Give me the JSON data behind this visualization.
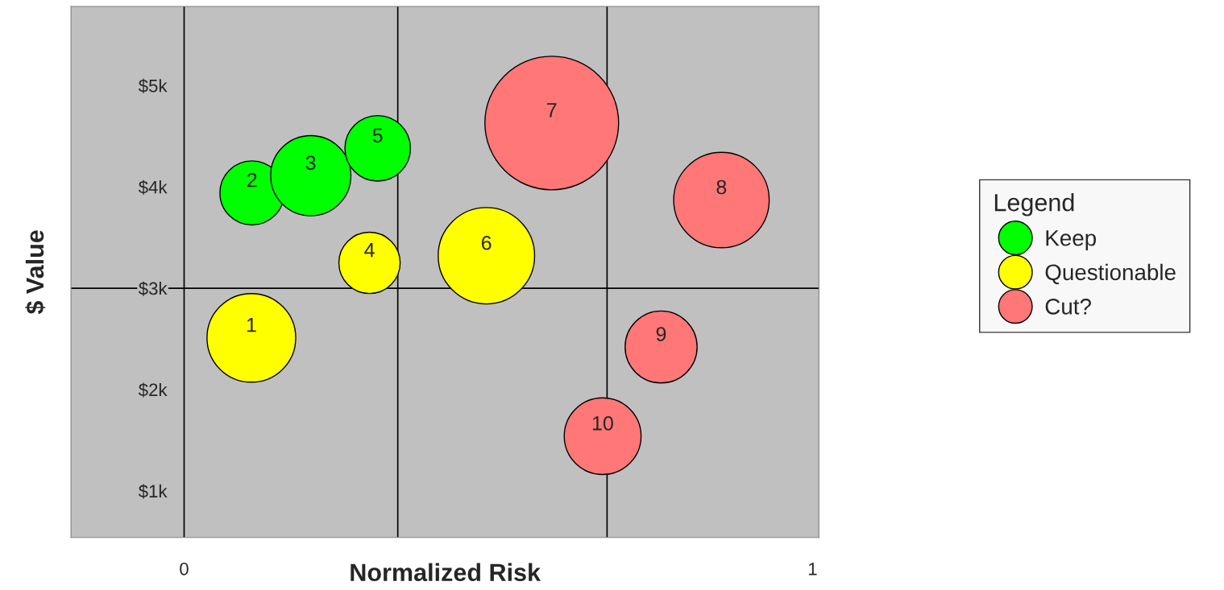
{
  "chart_data": {
    "type": "bubble",
    "xlabel": "Normalized Risk",
    "ylabel": "$ Value",
    "legend_title": "Legend",
    "legend": "right",
    "grid": false,
    "xlim": [
      -0.18,
      1.01
    ],
    "ylim": [
      0.54,
      5.78
    ],
    "xticks": [
      0,
      1
    ],
    "yticks": [
      {
        "value": 1,
        "label": "$1k"
      },
      {
        "value": 2,
        "label": "$2k"
      },
      {
        "value": 3,
        "label": "$3k"
      },
      {
        "value": 4,
        "label": "$4k"
      },
      {
        "value": 5,
        "label": "$5k"
      }
    ],
    "ref_lines": [
      {
        "axis": "x",
        "value": 0,
        "color": "#000000",
        "line_style": "solid"
      },
      {
        "axis": "y",
        "value": 3,
        "color": "#000000",
        "line_style": "solid"
      },
      {
        "axis": "x",
        "value": 0.34,
        "color": "#000000",
        "line_style": "solid"
      },
      {
        "axis": "x",
        "value": 0.673,
        "color": "#000000",
        "line_style": "solid"
      }
    ],
    "series": [
      {
        "name": "Keep",
        "color": "#00ff00",
        "x": [
          0.108,
          0.2015,
          0.308
        ],
        "values": [
          3.94,
          4.11,
          4.38
        ],
        "sizes": [
          0.23,
          0.36,
          0.24
        ]
      },
      {
        "name": "Questionable",
        "color": "#ffff00",
        "x": [
          0.107,
          0.295,
          0.481
        ],
        "values": [
          2.51,
          3.25,
          3.32
        ],
        "sizes": [
          0.44,
          0.21,
          0.52
        ]
      },
      {
        "name": "Cut?",
        "color": "#ff7777",
        "x": [
          0.585,
          0.855,
          0.759,
          0.666
        ],
        "values": [
          4.63,
          3.87,
          2.42,
          1.54
        ],
        "sizes": [
          1,
          0.51,
          0.29,
          0.33
        ]
      }
    ],
    "annotations": [
      {
        "text": "1",
        "x": 0.107,
        "y": 2.51
      },
      {
        "text": "2",
        "x": 0.108,
        "y": 3.94
      },
      {
        "text": "3",
        "x": 0.2015,
        "y": 4.11
      },
      {
        "text": "4",
        "x": 0.295,
        "y": 3.25
      },
      {
        "text": "5",
        "x": 0.308,
        "y": 4.38
      },
      {
        "text": "6",
        "x": 0.481,
        "y": 3.32
      },
      {
        "text": "7",
        "x": 0.585,
        "y": 4.63
      },
      {
        "text": "8",
        "x": 0.855,
        "y": 3.87
      },
      {
        "text": "9",
        "x": 0.759,
        "y": 2.42
      },
      {
        "text": "10",
        "x": 0.666,
        "y": 1.54
      }
    ]
  }
}
